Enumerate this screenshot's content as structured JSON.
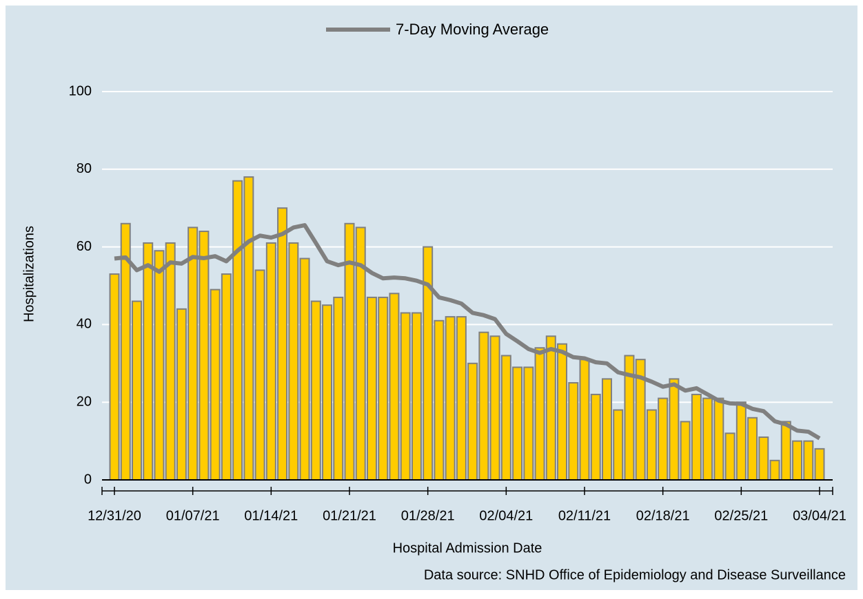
{
  "chart_data": {
    "type": "bar",
    "x_label": "Hospital Admission Date",
    "y_label": "Hospitalizations",
    "note": "Data source: SNHD Office of Epidemiology and Disease Surveillance",
    "categories": [
      "12/31/20",
      null,
      null,
      null,
      null,
      null,
      null,
      "01/07/21",
      null,
      null,
      null,
      null,
      null,
      null,
      "01/14/21",
      null,
      null,
      null,
      null,
      null,
      null,
      "01/21/21",
      null,
      null,
      null,
      null,
      null,
      null,
      "01/28/21",
      null,
      null,
      null,
      null,
      null,
      null,
      "02/04/21",
      null,
      null,
      null,
      null,
      null,
      null,
      "02/11/21",
      null,
      null,
      null,
      null,
      null,
      null,
      "02/18/21",
      null,
      null,
      null,
      null,
      null,
      null,
      "02/25/21",
      null,
      null,
      null,
      null,
      null,
      null,
      "03/04/21"
    ],
    "series": [
      {
        "type": "bar",
        "color": "#ffcc00",
        "edge_color": "#7f7f7f",
        "values": [
          53,
          66,
          46,
          61,
          59,
          61,
          44,
          65,
          64,
          49,
          53,
          77,
          78,
          54,
          61,
          70,
          61,
          57,
          46,
          45,
          47,
          66,
          65,
          47,
          47,
          48,
          43,
          43,
          60,
          41,
          42,
          42,
          30,
          38,
          37,
          32,
          29,
          29,
          34,
          37,
          35,
          25,
          31,
          22,
          26,
          18,
          32,
          31,
          18,
          21,
          26,
          15,
          22,
          21,
          21,
          12,
          20,
          16,
          11,
          5,
          15,
          10,
          10,
          8
        ]
      },
      {
        "type": "line",
        "name": "7-Day Moving Average",
        "color": "#808080",
        "values": [
          57,
          57.3,
          54,
          55.3,
          53.6,
          56,
          55.7,
          57.4,
          57.1,
          57.6,
          56.3,
          59,
          61.4,
          62.9,
          62.4,
          63.3,
          65,
          65.6,
          61,
          56.3,
          55.3,
          56,
          55.3,
          53.3,
          51.9,
          52.1,
          51.9,
          51.3,
          50.3,
          47,
          46.3,
          45.4,
          43,
          42.4,
          41.4,
          37.6,
          35.7,
          33.7,
          32.7,
          33.7,
          33,
          31.6,
          31.3,
          30.3,
          30,
          27.7,
          27,
          26.4,
          25.3,
          24,
          24.6,
          23,
          23.6,
          22,
          20.4,
          19.7,
          19.6,
          18.3,
          17.7,
          15.1,
          14.3,
          12.7,
          12.4,
          10.7
        ]
      }
    ],
    "ylim": [
      0,
      100
    ],
    "yticks": [
      0,
      20,
      40,
      60,
      80,
      100
    ],
    "grid": true,
    "legend": "top"
  }
}
